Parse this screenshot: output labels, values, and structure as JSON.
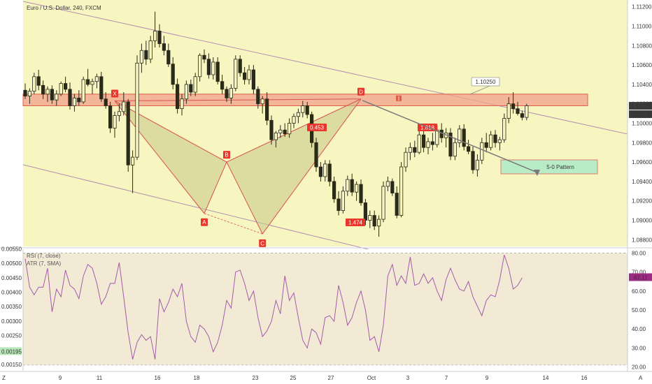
{
  "chart_data": [
    {
      "type": "candlestick",
      "title": "Euro / U.S. Dollar, 240, FXCM",
      "ylim": [
        1.0873,
        1.1127
      ],
      "yticks": [
        "1.11200",
        "1.11000",
        "1.10800",
        "1.10600",
        "1.10400",
        "1.10200",
        "1.10000",
        "1.09800",
        "1.09600",
        "1.09400",
        "1.09200",
        "1.09000",
        "1.08800"
      ],
      "xticks": [
        "9",
        "11",
        "16",
        "18",
        "23",
        "25",
        "27",
        "Oct",
        "3",
        "7",
        "9",
        "14",
        "16"
      ],
      "last_price": "1.10176",
      "countdown": "02:21:59",
      "candles": [
        [
          1.1034,
          1.1041,
          1.1025,
          1.1028
        ],
        [
          1.1028,
          1.1036,
          1.102,
          1.1033
        ],
        [
          1.1033,
          1.1052,
          1.103,
          1.1048
        ],
        [
          1.1048,
          1.1055,
          1.1034,
          1.1039
        ],
        [
          1.1039,
          1.1044,
          1.1025,
          1.103
        ],
        [
          1.103,
          1.1038,
          1.1022,
          1.1035
        ],
        [
          1.1035,
          1.1039,
          1.102,
          1.1024
        ],
        [
          1.1024,
          1.1034,
          1.1018,
          1.103
        ],
        [
          1.103,
          1.1043,
          1.1028,
          1.1041
        ],
        [
          1.1041,
          1.1048,
          1.1032,
          1.1035
        ],
        [
          1.1035,
          1.1042,
          1.1014,
          1.1018
        ],
        [
          1.1018,
          1.103,
          1.1012,
          1.1026
        ],
        [
          1.1026,
          1.1034,
          1.1018,
          1.1022
        ],
        [
          1.1022,
          1.1048,
          1.102,
          1.1045
        ],
        [
          1.1045,
          1.1056,
          1.1038,
          1.104
        ],
        [
          1.104,
          1.1046,
          1.103,
          1.1043
        ],
        [
          1.1043,
          1.1051,
          1.1036,
          1.1048
        ],
        [
          1.1048,
          1.1053,
          1.1022,
          1.1025
        ],
        [
          1.1025,
          1.1032,
          1.1015,
          1.1018
        ],
        [
          1.1018,
          1.1022,
          1.099,
          1.0995
        ],
        [
          1.0995,
          1.1012,
          1.0985,
          1.1008
        ],
        [
          1.1008,
          1.102,
          1.1002,
          1.1012
        ],
        [
          1.1012,
          1.1032,
          1.1008,
          1.1022
        ],
        [
          1.1022,
          1.1025,
          1.095,
          1.0957
        ],
        [
          1.0957,
          1.0972,
          1.0928,
          1.0965
        ],
        [
          1.0965,
          1.107,
          1.0962,
          1.1062
        ],
        [
          1.1062,
          1.1082,
          1.1052,
          1.1075
        ],
        [
          1.1075,
          1.1085,
          1.106,
          1.1066
        ],
        [
          1.1066,
          1.109,
          1.1062,
          1.1085
        ],
        [
          1.1085,
          1.1115,
          1.1078,
          1.1095
        ],
        [
          1.1095,
          1.1102,
          1.1078,
          1.1082
        ],
        [
          1.1082,
          1.109,
          1.107,
          1.1075
        ],
        [
          1.1075,
          1.1082,
          1.1058,
          1.1061
        ],
        [
          1.1061,
          1.1068,
          1.1035,
          1.104
        ],
        [
          1.104,
          1.1046,
          1.101,
          1.1015
        ],
        [
          1.1015,
          1.103,
          1.1008,
          1.1025
        ],
        [
          1.1025,
          1.1044,
          1.102,
          1.104
        ],
        [
          1.104,
          1.1045,
          1.1028,
          1.1032
        ],
        [
          1.1032,
          1.1052,
          1.1028,
          1.1048
        ],
        [
          1.1048,
          1.1072,
          1.1043,
          1.107
        ],
        [
          1.107,
          1.1076,
          1.1062,
          1.1066
        ],
        [
          1.1066,
          1.1072,
          1.1046,
          1.105
        ],
        [
          1.105,
          1.1068,
          1.1045,
          1.1063
        ],
        [
          1.1063,
          1.1068,
          1.104,
          1.1043
        ],
        [
          1.1043,
          1.105,
          1.103,
          1.1035
        ],
        [
          1.1035,
          1.1038,
          1.1022,
          1.1026
        ],
        [
          1.1026,
          1.104,
          1.102,
          1.1036
        ],
        [
          1.1036,
          1.107,
          1.1033,
          1.1066
        ],
        [
          1.1066,
          1.107,
          1.1048,
          1.1052
        ],
        [
          1.1052,
          1.1058,
          1.104,
          1.1045
        ],
        [
          1.1045,
          1.106,
          1.104,
          1.1055
        ],
        [
          1.1055,
          1.106,
          1.103,
          1.1035
        ],
        [
          1.1035,
          1.1038,
          1.1015,
          1.102
        ],
        [
          1.102,
          1.1028,
          1.101,
          1.1025
        ],
        [
          1.1025,
          1.1032,
          1.0998,
          1.1003
        ],
        [
          1.1003,
          1.1008,
          1.0978,
          1.0983
        ],
        [
          1.0983,
          1.0992,
          1.0975,
          1.099
        ],
        [
          1.099,
          1.0998,
          1.0985,
          1.0993
        ],
        [
          1.0993,
          1.1,
          1.0986,
          1.0989
        ],
        [
          1.0989,
          1.1005,
          1.0985,
          1.1
        ],
        [
          1.1,
          1.101,
          1.0995,
          1.1007
        ],
        [
          1.1007,
          1.1015,
          1.1,
          1.1011
        ],
        [
          1.1011,
          1.1023,
          1.1006,
          1.1018
        ],
        [
          1.1018,
          1.1022,
          1.1005,
          1.1009
        ],
        [
          1.1009,
          1.1012,
          1.0975,
          1.098
        ],
        [
          1.098,
          1.0985,
          1.095,
          1.0955
        ],
        [
          1.0955,
          1.096,
          1.094,
          1.0945
        ],
        [
          1.0945,
          1.0962,
          1.094,
          1.0958
        ],
        [
          1.0958,
          1.0962,
          1.0935,
          1.094
        ],
        [
          1.094,
          1.0945,
          1.0918,
          1.0922
        ],
        [
          1.0922,
          1.093,
          1.0905,
          1.091
        ],
        [
          1.091,
          1.0935,
          1.0907,
          1.093
        ],
        [
          1.093,
          1.0946,
          1.0925,
          1.0942
        ],
        [
          1.0942,
          1.0948,
          1.0925,
          1.0929
        ],
        [
          1.0929,
          1.094,
          1.092,
          1.0937
        ],
        [
          1.0937,
          1.0942,
          1.0915,
          1.0918
        ],
        [
          1.0918,
          1.0922,
          1.0895,
          1.09
        ],
        [
          1.09,
          1.091,
          1.0892,
          1.0905
        ],
        [
          1.0905,
          1.091,
          1.089,
          1.0894
        ],
        [
          1.0894,
          1.0905,
          1.0883,
          1.0901
        ],
        [
          1.0901,
          1.094,
          1.0898,
          1.0935
        ],
        [
          1.0935,
          1.0945,
          1.093,
          1.094
        ],
        [
          1.094,
          1.0943,
          1.0925,
          1.0928
        ],
        [
          1.0928,
          1.0935,
          1.0902,
          1.0905
        ],
        [
          1.0905,
          1.096,
          1.0903,
          1.0955
        ],
        [
          1.0955,
          1.0975,
          1.095,
          1.097
        ],
        [
          1.097,
          1.098,
          1.0962,
          1.0975
        ],
        [
          1.0975,
          1.0982,
          1.0965,
          1.097
        ],
        [
          1.097,
          1.0992,
          1.0968,
          1.0988
        ],
        [
          1.0988,
          1.0995,
          1.097,
          1.0975
        ],
        [
          1.0975,
          1.0985,
          1.0968,
          1.0981
        ],
        [
          1.0981,
          1.099,
          1.0972,
          1.0978
        ],
        [
          1.0978,
          1.0998,
          1.0975,
          1.0993
        ],
        [
          1.0993,
          1.1,
          1.098,
          1.0985
        ],
        [
          1.0985,
          1.0995,
          1.0975,
          1.099
        ],
        [
          1.099,
          1.0995,
          1.0962,
          1.0966
        ],
        [
          1.0966,
          1.0985,
          1.0962,
          1.098
        ],
        [
          1.098,
          1.0998,
          1.0975,
          1.0994
        ],
        [
          1.0994,
          1.0999,
          1.0972,
          1.0976
        ],
        [
          1.0976,
          1.0983,
          1.0968,
          1.0971
        ],
        [
          1.0971,
          1.0976,
          1.0948,
          1.0952
        ],
        [
          1.0952,
          1.0968,
          1.0945,
          1.0962
        ],
        [
          1.0962,
          1.0985,
          1.0958,
          1.098
        ],
        [
          1.098,
          1.099,
          1.097,
          1.0975
        ],
        [
          1.0975,
          1.0992,
          1.0972,
          1.0988
        ],
        [
          1.0988,
          1.0993,
          1.0975,
          1.098
        ],
        [
          1.098,
          1.0986,
          1.0972,
          1.0983
        ],
        [
          1.0983,
          1.101,
          1.098,
          1.1005
        ],
        [
          1.1005,
          1.1027,
          1.1,
          1.102
        ],
        [
          1.102,
          1.1032,
          1.101,
          1.1015
        ],
        [
          1.1015,
          1.1022,
          1.1008,
          1.101
        ],
        [
          1.101,
          1.1013,
          1.1003,
          1.1006
        ],
        [
          1.1006,
          1.102,
          1.1003,
          1.1018
        ]
      ],
      "rect_label": "1.10250",
      "pattern_points": [
        {
          "name": "X",
          "x": 20,
          "y": 1.1023
        },
        {
          "name": "A",
          "x": 40,
          "y": 1.0907
        },
        {
          "name": "B",
          "x": 45,
          "y": 1.096
        },
        {
          "name": "C",
          "x": 53,
          "y": 1.0886
        },
        {
          "name": "D",
          "x": 75,
          "y": 1.1025
        }
      ],
      "ratio_labels": [
        "0.453",
        "1.474",
        "1.818"
      ],
      "target_label": "5-0 Pattern",
      "zone_high": 1.103,
      "zone_low": 1.1018
    },
    {
      "type": "line",
      "series": [
        {
          "name": "RSI (7, close)",
          "values": [
            77,
            62,
            58,
            62,
            62,
            72,
            49,
            61,
            57,
            71,
            63,
            61,
            56,
            68,
            74,
            72,
            64,
            53,
            57,
            64,
            64,
            75,
            57,
            38,
            24,
            33,
            37,
            34,
            36,
            24,
            56,
            49,
            54,
            61,
            57,
            64,
            44,
            36,
            33,
            42,
            40,
            36,
            28,
            33,
            42,
            55,
            51,
            70,
            71,
            64,
            55,
            60,
            46,
            36,
            39,
            44,
            55,
            48,
            68,
            55,
            59,
            46,
            34,
            30,
            40,
            38,
            32,
            46,
            47,
            44,
            63,
            54,
            42,
            46,
            54,
            60,
            50,
            34,
            36,
            28,
            42,
            68,
            74,
            63,
            68,
            64,
            78,
            63,
            64,
            69,
            64,
            67,
            60,
            55,
            66,
            72,
            66,
            61,
            60,
            65,
            57,
            52,
            47,
            55,
            58,
            57,
            66,
            79,
            72,
            61,
            63,
            67
          ]
        },
        {
          "name": "ATR (7, SMA)"
        }
      ],
      "ylim": [
        18,
        82
      ],
      "right_ticks": [
        "80.00",
        "70.00",
        "60.00",
        "50.00",
        "40.00",
        "30.00",
        "20.00"
      ],
      "left_ticks": [
        "0.00550",
        "0.00500",
        "0.00450",
        "0.00400",
        "0.00350",
        "0.00300",
        "0.00250",
        "0.00200",
        "0.00150"
      ],
      "atr_value": "0.00195",
      "rsi_value": "67.11"
    }
  ],
  "bottom_bar": {
    "left_letter": "Z",
    "right_letter": "A"
  },
  "colors": {
    "bg_fill": "#f7f5c0",
    "channel": "#b48fb2",
    "candle": "#2a2a1a",
    "zone": "#f2a08c",
    "zone_edge": "#e05d48",
    "pattern_fill": "#c7c787",
    "pattern_line": "#d9534f",
    "point_label": "#e8362a",
    "target_fill": "#b8ecc6",
    "target_edge": "#e07a70",
    "rsi_line": "#a35ca8",
    "rsi_band": "#f2ead5",
    "price_label": "#3b3b3b",
    "atr_label": "#b9e6b9",
    "rsi_label": "#9c2c83",
    "arrow": "#7a7a7a"
  }
}
